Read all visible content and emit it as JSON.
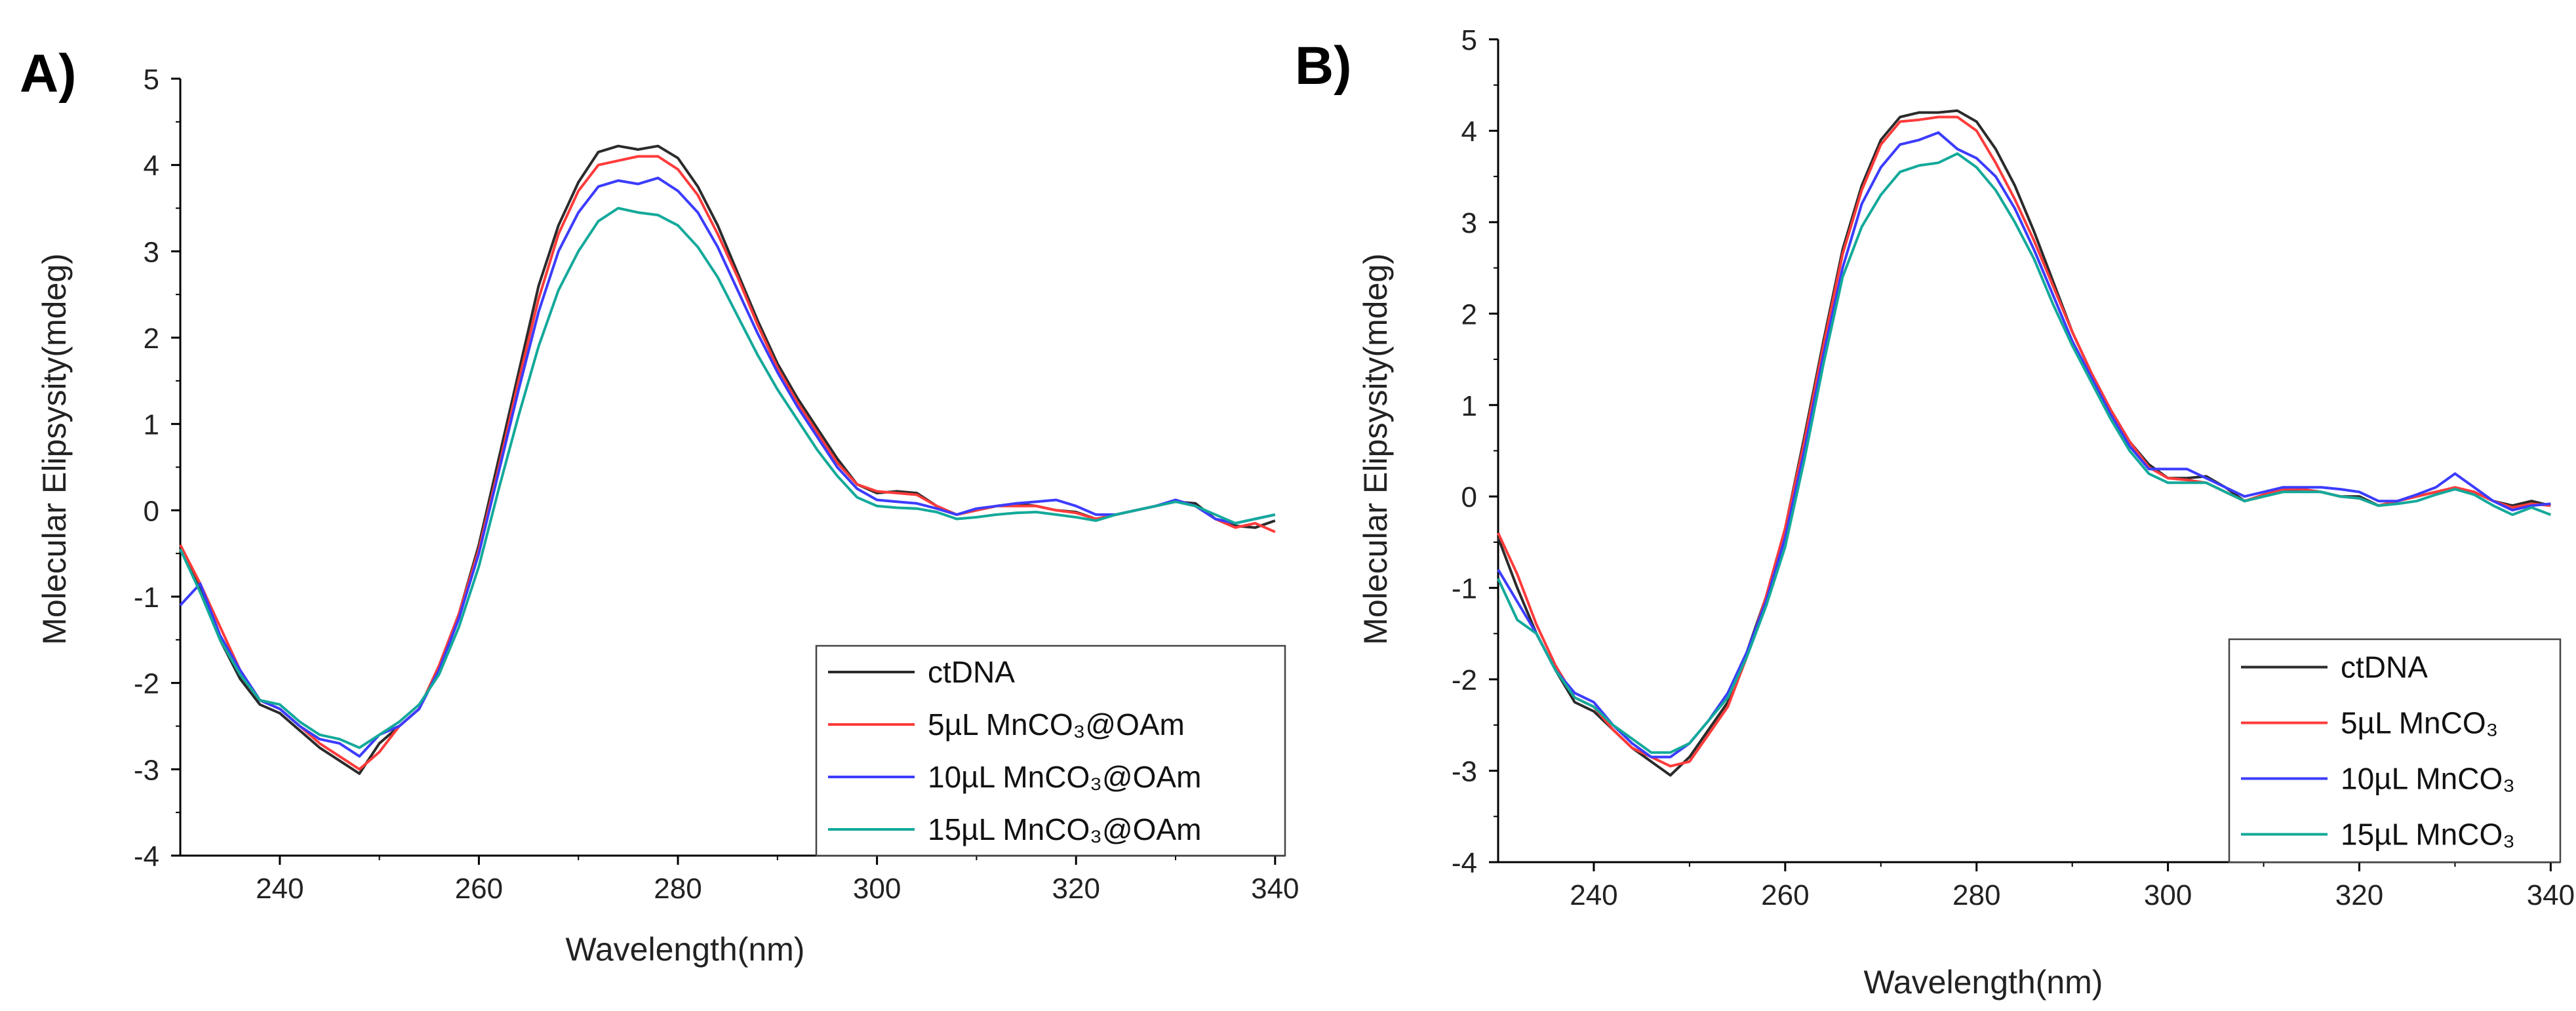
{
  "panels": [
    {
      "label": "A)",
      "ylabel": "Molecular Elipsysity(mdeg)",
      "xlabel": "Wavelength(nm)"
    },
    {
      "label": "B)",
      "ylabel": "Molecular Elipsysity(mdeg)",
      "xlabel": "Wavelength(nm)"
    }
  ],
  "colors": {
    "ctDNA": "#2b2b2b",
    "5uL": "#ff3b3b",
    "10uL": "#3c3cff",
    "15uL": "#13a99a",
    "axis": "#000000"
  },
  "chart_data": [
    {
      "type": "line",
      "title": "",
      "xlabel": "Wavelength(nm)",
      "ylabel": "Molecular Elipsysity(mdeg)",
      "xlim": [
        230,
        341
      ],
      "ylim": [
        -4,
        5
      ],
      "xticks": [
        240,
        260,
        280,
        300,
        320,
        340
      ],
      "yticks": [
        -4,
        -3,
        -2,
        -1,
        0,
        1,
        2,
        3,
        4,
        5
      ],
      "grid": false,
      "legend_position": "bottom-right",
      "series": [
        {
          "name": "ctDNA",
          "color": "#2b2b2b",
          "x": [
            230,
            232,
            234,
            236,
            238,
            240,
            242,
            244,
            246,
            248,
            250,
            252,
            254,
            256,
            258,
            260,
            262,
            264,
            266,
            268,
            270,
            272,
            274,
            276,
            278,
            280,
            282,
            284,
            286,
            288,
            290,
            292,
            294,
            296,
            298,
            300,
            302,
            304,
            306,
            308,
            310,
            312,
            314,
            316,
            318,
            320,
            322,
            324,
            326,
            328,
            330,
            332,
            334,
            336,
            338,
            340
          ],
          "y": [
            -0.4,
            -0.9,
            -1.5,
            -1.95,
            -2.25,
            -2.35,
            -2.55,
            -2.75,
            -2.9,
            -3.05,
            -2.7,
            -2.5,
            -2.3,
            -1.8,
            -1.2,
            -0.4,
            0.6,
            1.6,
            2.6,
            3.3,
            3.8,
            4.15,
            4.22,
            4.18,
            4.22,
            4.08,
            3.75,
            3.3,
            2.75,
            2.2,
            1.7,
            1.3,
            0.95,
            0.6,
            0.3,
            0.2,
            0.22,
            0.2,
            0.05,
            -0.05,
            0.0,
            0.05,
            0.08,
            0.05,
            0.0,
            -0.02,
            -0.1,
            -0.05,
            0.0,
            0.05,
            0.1,
            0.08,
            -0.1,
            -0.18,
            -0.2,
            -0.12
          ]
        },
        {
          "name": "5µL MnCO₃@OAm",
          "color": "#ff3b3b",
          "x": [
            230,
            232,
            234,
            236,
            238,
            240,
            242,
            244,
            246,
            248,
            250,
            252,
            254,
            256,
            258,
            260,
            262,
            264,
            266,
            268,
            270,
            272,
            274,
            276,
            278,
            280,
            282,
            284,
            286,
            288,
            290,
            292,
            294,
            296,
            298,
            300,
            302,
            304,
            306,
            308,
            310,
            312,
            314,
            316,
            318,
            320,
            322,
            324,
            326,
            328,
            330,
            332,
            334,
            336,
            338,
            340
          ],
          "y": [
            -0.4,
            -0.85,
            -1.35,
            -1.85,
            -2.2,
            -2.3,
            -2.5,
            -2.7,
            -2.85,
            -3.0,
            -2.8,
            -2.5,
            -2.3,
            -1.8,
            -1.2,
            -0.45,
            0.5,
            1.5,
            2.45,
            3.2,
            3.7,
            4.0,
            4.05,
            4.1,
            4.1,
            3.95,
            3.65,
            3.2,
            2.7,
            2.15,
            1.65,
            1.25,
            0.9,
            0.55,
            0.3,
            0.22,
            0.2,
            0.18,
            0.05,
            -0.05,
            0.0,
            0.05,
            0.05,
            0.05,
            0.0,
            -0.03,
            -0.1,
            -0.05,
            0.0,
            0.05,
            0.12,
            0.05,
            -0.1,
            -0.2,
            -0.15,
            -0.25
          ]
        },
        {
          "name": "10µL MnCO₃@OAm",
          "color": "#3c3cff",
          "x": [
            230,
            232,
            234,
            236,
            238,
            240,
            242,
            244,
            246,
            248,
            250,
            252,
            254,
            256,
            258,
            260,
            262,
            264,
            266,
            268,
            270,
            272,
            274,
            276,
            278,
            280,
            282,
            284,
            286,
            288,
            290,
            292,
            294,
            296,
            298,
            300,
            302,
            304,
            306,
            308,
            310,
            312,
            314,
            316,
            318,
            320,
            322,
            324,
            326,
            328,
            330,
            332,
            334,
            336,
            338,
            340
          ],
          "y": [
            -1.1,
            -0.85,
            -1.45,
            -1.85,
            -2.2,
            -2.3,
            -2.5,
            -2.65,
            -2.7,
            -2.85,
            -2.6,
            -2.5,
            -2.3,
            -1.85,
            -1.25,
            -0.5,
            0.45,
            1.4,
            2.3,
            3.0,
            3.45,
            3.75,
            3.82,
            3.78,
            3.85,
            3.7,
            3.45,
            3.05,
            2.55,
            2.05,
            1.6,
            1.2,
            0.85,
            0.5,
            0.25,
            0.12,
            0.1,
            0.08,
            0.02,
            -0.05,
            0.02,
            0.05,
            0.08,
            0.1,
            0.12,
            0.05,
            -0.05,
            -0.05,
            0.0,
            0.05,
            0.12,
            0.05,
            -0.1,
            -0.15,
            -0.1,
            -0.05
          ]
        },
        {
          "name": "15µL MnCO₃@OAm",
          "color": "#13a99a",
          "x": [
            230,
            232,
            234,
            236,
            238,
            240,
            242,
            244,
            246,
            248,
            250,
            252,
            254,
            256,
            258,
            260,
            262,
            264,
            266,
            268,
            270,
            272,
            274,
            276,
            278,
            280,
            282,
            284,
            286,
            288,
            290,
            292,
            294,
            296,
            298,
            300,
            302,
            304,
            306,
            308,
            310,
            312,
            314,
            316,
            318,
            320,
            322,
            324,
            326,
            328,
            330,
            332,
            334,
            336,
            338,
            340
          ],
          "y": [
            -0.45,
            -0.95,
            -1.5,
            -1.9,
            -2.2,
            -2.25,
            -2.45,
            -2.6,
            -2.65,
            -2.75,
            -2.6,
            -2.45,
            -2.25,
            -1.9,
            -1.35,
            -0.65,
            0.25,
            1.1,
            1.9,
            2.55,
            3.0,
            3.35,
            3.5,
            3.45,
            3.42,
            3.3,
            3.05,
            2.7,
            2.25,
            1.8,
            1.4,
            1.05,
            0.7,
            0.4,
            0.15,
            0.05,
            0.03,
            0.02,
            -0.02,
            -0.1,
            -0.08,
            -0.05,
            -0.03,
            -0.02,
            -0.05,
            -0.08,
            -0.12,
            -0.05,
            0.0,
            0.05,
            0.1,
            0.05,
            -0.05,
            -0.15,
            -0.1,
            -0.05
          ]
        }
      ]
    },
    {
      "type": "line",
      "title": "",
      "xlabel": "Wavelength(nm)",
      "ylabel": "Molecular Elipsysity(mdeg)",
      "xlim": [
        230,
        341
      ],
      "ylim": [
        -4,
        5
      ],
      "xticks": [
        240,
        260,
        280,
        300,
        320,
        340
      ],
      "yticks": [
        -4,
        -3,
        -2,
        -1,
        0,
        1,
        2,
        3,
        4,
        5
      ],
      "grid": false,
      "legend_position": "bottom-right",
      "series": [
        {
          "name": "ctDNA",
          "color": "#2b2b2b",
          "x": [
            230,
            232,
            234,
            236,
            238,
            240,
            242,
            244,
            246,
            248,
            250,
            252,
            254,
            256,
            258,
            260,
            262,
            264,
            266,
            268,
            270,
            272,
            274,
            276,
            278,
            280,
            282,
            284,
            286,
            288,
            290,
            292,
            294,
            296,
            298,
            300,
            302,
            304,
            306,
            308,
            310,
            312,
            314,
            316,
            318,
            320,
            322,
            324,
            326,
            328,
            330,
            332,
            334,
            336,
            338,
            340
          ],
          "y": [
            -0.45,
            -1.0,
            -1.5,
            -1.9,
            -2.25,
            -2.35,
            -2.55,
            -2.75,
            -2.9,
            -3.05,
            -2.85,
            -2.55,
            -2.25,
            -1.7,
            -1.1,
            -0.35,
            0.65,
            1.7,
            2.7,
            3.4,
            3.9,
            4.15,
            4.2,
            4.2,
            4.22,
            4.1,
            3.8,
            3.4,
            2.9,
            2.35,
            1.8,
            1.35,
            0.95,
            0.6,
            0.35,
            0.2,
            0.2,
            0.22,
            0.1,
            -0.05,
            0.0,
            0.05,
            0.08,
            0.05,
            0.0,
            0.0,
            -0.1,
            -0.05,
            0.0,
            0.05,
            0.08,
            0.05,
            -0.05,
            -0.1,
            -0.05,
            -0.1
          ]
        },
        {
          "name": "5µL MnCO₃",
          "color": "#ff3b3b",
          "x": [
            230,
            232,
            234,
            236,
            238,
            240,
            242,
            244,
            246,
            248,
            250,
            252,
            254,
            256,
            258,
            260,
            262,
            264,
            266,
            268,
            270,
            272,
            274,
            276,
            278,
            280,
            282,
            284,
            286,
            288,
            290,
            292,
            294,
            296,
            298,
            300,
            302,
            304,
            306,
            308,
            310,
            312,
            314,
            316,
            318,
            320,
            322,
            324,
            326,
            328,
            330,
            332,
            334,
            336,
            338,
            340
          ],
          "y": [
            -0.4,
            -0.85,
            -1.4,
            -1.85,
            -2.2,
            -2.3,
            -2.55,
            -2.75,
            -2.85,
            -2.95,
            -2.9,
            -2.6,
            -2.3,
            -1.75,
            -1.1,
            -0.35,
            0.6,
            1.65,
            2.65,
            3.35,
            3.85,
            4.1,
            4.12,
            4.15,
            4.15,
            4.0,
            3.65,
            3.25,
            2.8,
            2.3,
            1.8,
            1.35,
            0.95,
            0.6,
            0.32,
            0.2,
            0.18,
            0.15,
            0.05,
            -0.05,
            0.02,
            0.08,
            0.08,
            0.05,
            0.0,
            -0.02,
            -0.1,
            -0.05,
            0.0,
            0.05,
            0.1,
            0.05,
            -0.05,
            -0.12,
            -0.08,
            -0.1
          ]
        },
        {
          "name": "10µL MnCO₃",
          "color": "#3c3cff",
          "x": [
            230,
            232,
            234,
            236,
            238,
            240,
            242,
            244,
            246,
            248,
            250,
            252,
            254,
            256,
            258,
            260,
            262,
            264,
            266,
            268,
            270,
            272,
            274,
            276,
            278,
            280,
            282,
            284,
            286,
            288,
            290,
            292,
            294,
            296,
            298,
            300,
            302,
            304,
            306,
            308,
            310,
            312,
            314,
            316,
            318,
            320,
            322,
            324,
            326,
            328,
            330,
            332,
            334,
            336,
            338,
            340
          ],
          "y": [
            -0.8,
            -1.15,
            -1.5,
            -1.9,
            -2.15,
            -2.25,
            -2.5,
            -2.7,
            -2.85,
            -2.85,
            -2.7,
            -2.45,
            -2.15,
            -1.7,
            -1.15,
            -0.45,
            0.5,
            1.55,
            2.5,
            3.2,
            3.6,
            3.85,
            3.9,
            3.98,
            3.8,
            3.7,
            3.5,
            3.15,
            2.7,
            2.2,
            1.7,
            1.3,
            0.9,
            0.55,
            0.3,
            0.3,
            0.3,
            0.2,
            0.1,
            0.0,
            0.05,
            0.1,
            0.1,
            0.1,
            0.08,
            0.05,
            -0.05,
            -0.05,
            0.02,
            0.1,
            0.25,
            0.1,
            -0.05,
            -0.15,
            -0.1,
            -0.08
          ]
        },
        {
          "name": "15µL MnCO₃",
          "color": "#13a99a",
          "x": [
            230,
            232,
            234,
            236,
            238,
            240,
            242,
            244,
            246,
            248,
            250,
            252,
            254,
            256,
            258,
            260,
            262,
            264,
            266,
            268,
            270,
            272,
            274,
            276,
            278,
            280,
            282,
            284,
            286,
            288,
            290,
            292,
            294,
            296,
            298,
            300,
            302,
            304,
            306,
            308,
            310,
            312,
            314,
            316,
            318,
            320,
            322,
            324,
            326,
            328,
            330,
            332,
            334,
            336,
            338,
            340
          ],
          "y": [
            -0.9,
            -1.35,
            -1.5,
            -1.9,
            -2.2,
            -2.3,
            -2.5,
            -2.65,
            -2.8,
            -2.8,
            -2.7,
            -2.45,
            -2.2,
            -1.75,
            -1.2,
            -0.55,
            0.4,
            1.45,
            2.4,
            2.95,
            3.3,
            3.55,
            3.62,
            3.65,
            3.75,
            3.6,
            3.35,
            3.0,
            2.6,
            2.1,
            1.65,
            1.25,
            0.85,
            0.5,
            0.25,
            0.15,
            0.15,
            0.15,
            0.05,
            -0.05,
            0.0,
            0.05,
            0.05,
            0.05,
            0.0,
            -0.02,
            -0.1,
            -0.08,
            -0.05,
            0.02,
            0.08,
            0.02,
            -0.1,
            -0.2,
            -0.12,
            -0.2
          ]
        }
      ]
    }
  ]
}
